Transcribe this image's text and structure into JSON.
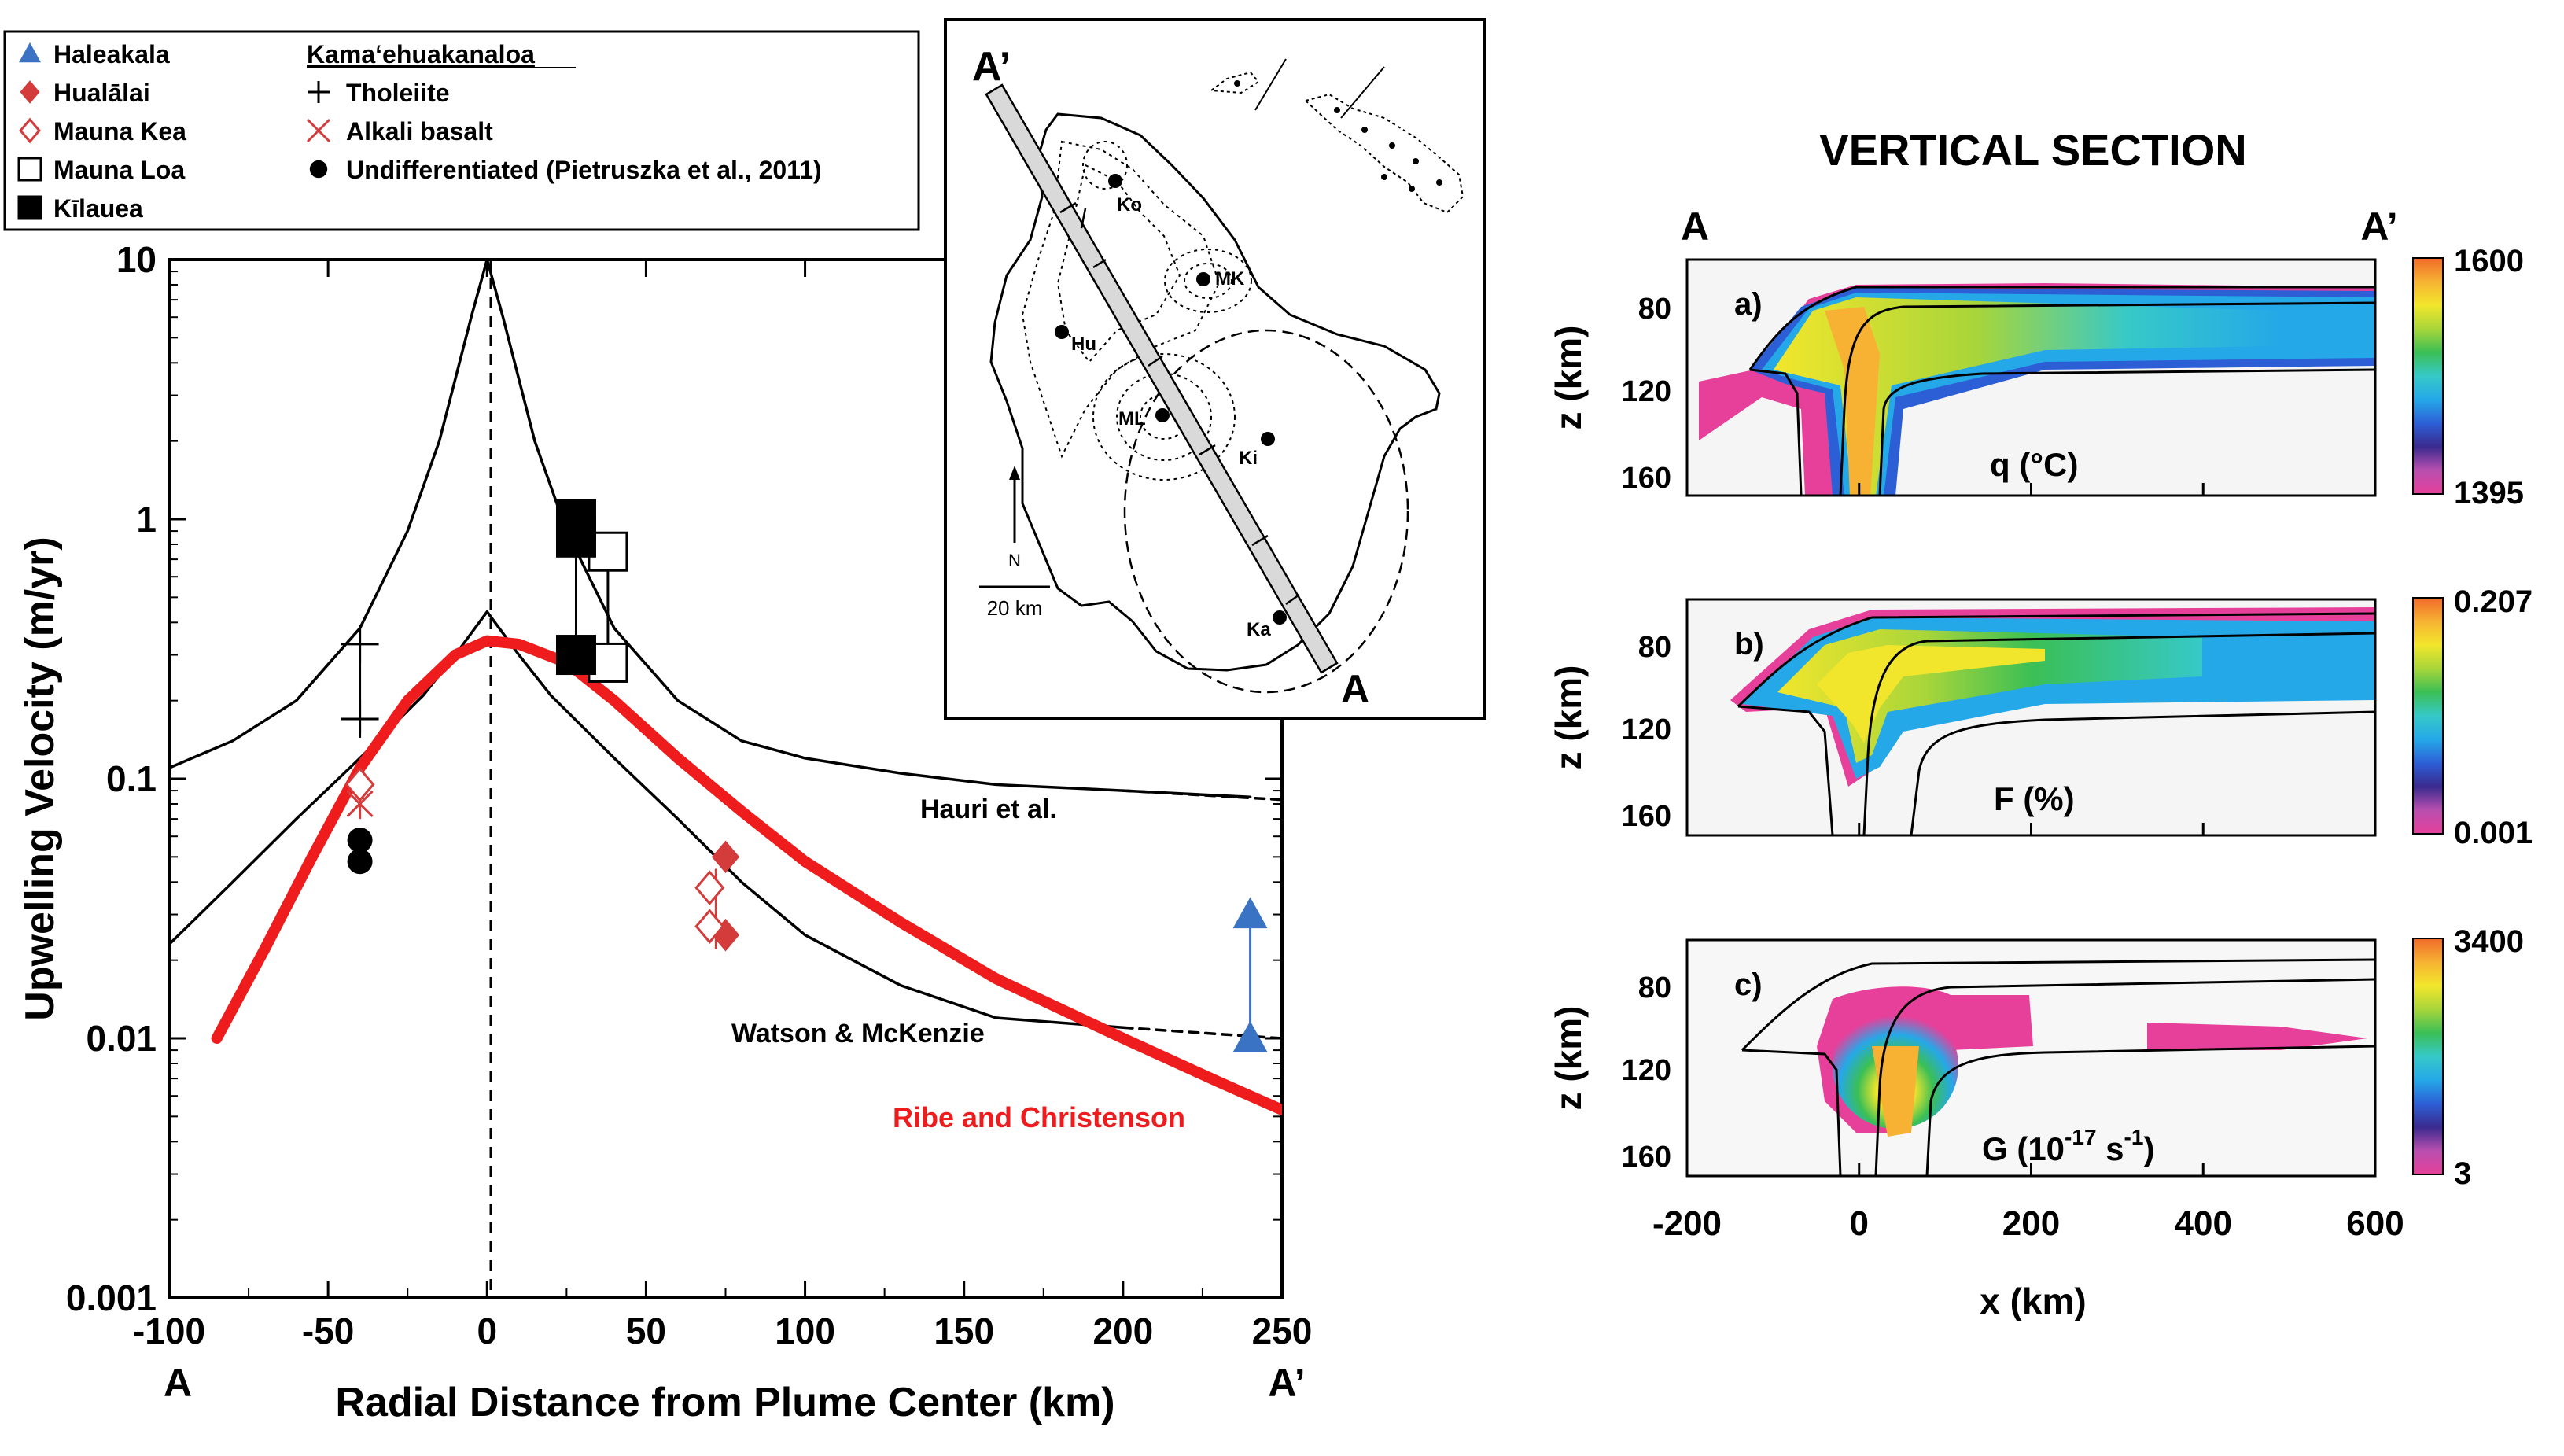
{
  "chart_data": [
    {
      "type": "line",
      "ylog": true,
      "ylabel": "Upwelling Velocity (m/yr)",
      "xlabel": "Radial Distance from Plume Center (km)",
      "xlim": [
        -100,
        250
      ],
      "ylim": [
        0.001,
        10
      ],
      "x_ticks": [
        "-100",
        "-50",
        "0",
        "50",
        "100",
        "150",
        "200",
        "250"
      ],
      "y_ticks": [
        "0.001",
        "0.01",
        "0.1",
        "1",
        "10"
      ],
      "x_end_labels": [
        "A",
        "A’"
      ],
      "series": [
        {
          "name": "Hauri et al.",
          "color": "#000000",
          "style": "solid",
          "x": [
            -100,
            -80,
            -60,
            -40,
            -25,
            -15,
            -5,
            0,
            5,
            15,
            25,
            40,
            60,
            80,
            100,
            130,
            160,
            200,
            240
          ],
          "y": [
            0.11,
            0.14,
            0.2,
            0.38,
            0.9,
            2.0,
            6.0,
            10,
            6.0,
            2.0,
            0.9,
            0.38,
            0.2,
            0.14,
            0.12,
            0.105,
            0.095,
            0.09,
            0.085
          ]
        },
        {
          "name": "Hauri extrapolation",
          "color": "#000000",
          "style": "dashed",
          "x": [
            200,
            250
          ],
          "y": [
            0.09,
            0.083
          ]
        },
        {
          "name": "Watson & McKenzie",
          "color": "#000000",
          "style": "solid",
          "x": [
            -100,
            -80,
            -60,
            -40,
            -20,
            -10,
            0,
            10,
            20,
            40,
            60,
            80,
            100,
            130,
            160,
            200
          ],
          "y": [
            0.023,
            0.04,
            0.07,
            0.12,
            0.21,
            0.3,
            0.44,
            0.3,
            0.21,
            0.12,
            0.07,
            0.04,
            0.025,
            0.016,
            0.012,
            0.011
          ]
        },
        {
          "name": "Watson extrapolation",
          "color": "#000000",
          "style": "dashed",
          "x": [
            200,
            250
          ],
          "y": [
            0.011,
            0.01
          ]
        },
        {
          "name": "Ribe and Christenson",
          "color": "#ee1c1c",
          "style": "solid",
          "x": [
            -85,
            -70,
            -55,
            -40,
            -25,
            -10,
            0,
            10,
            25,
            40,
            60,
            80,
            100,
            130,
            160,
            200,
            230,
            250
          ],
          "y": [
            0.01,
            0.022,
            0.05,
            0.11,
            0.2,
            0.3,
            0.34,
            0.33,
            0.28,
            0.2,
            0.12,
            0.075,
            0.048,
            0.028,
            0.017,
            0.01,
            0.0068,
            0.0053
          ]
        }
      ],
      "curve_labels": [
        "Hauri et al.",
        "Watson & McKenzie",
        "Ribe and Christenson"
      ],
      "points": [
        {
          "group": "Haleakala",
          "marker": "triangle",
          "color": "#3a72c4",
          "x": 240,
          "y": 0.03
        },
        {
          "group": "Haleakala",
          "marker": "triangle",
          "color": "#3a72c4",
          "x": 240,
          "y": 0.01
        },
        {
          "group": "Hualālai",
          "marker": "diamond-filled",
          "color": "#d43b3b",
          "x": 75,
          "y": 0.05
        },
        {
          "group": "Hualālai",
          "marker": "diamond-filled",
          "color": "#d43b3b",
          "x": 75,
          "y": 0.025
        },
        {
          "group": "Mauna Kea",
          "marker": "diamond-open",
          "color": "#d43b3b",
          "x": 70,
          "y": 0.038
        },
        {
          "group": "Mauna Kea",
          "marker": "diamond-open",
          "color": "#d43b3b",
          "x": 70,
          "y": 0.027
        },
        {
          "group": "Mauna Kea",
          "marker": "diamond-open",
          "color": "#d43b3b",
          "x": -40,
          "y": 0.095
        },
        {
          "group": "Mauna Loa",
          "marker": "square-open",
          "color": "#000000",
          "x": 38,
          "y": 0.75
        },
        {
          "group": "Mauna Loa",
          "marker": "square-open",
          "color": "#000000",
          "x": 38,
          "y": 0.28
        },
        {
          "group": "Kīlauea",
          "marker": "square-filled",
          "color": "#000000",
          "x": 28,
          "y": 1.0
        },
        {
          "group": "Kīlauea",
          "marker": "square-filled",
          "color": "#000000",
          "x": 28,
          "y": 0.85
        },
        {
          "group": "Kīlauea",
          "marker": "square-filled",
          "color": "#000000",
          "x": 28,
          "y": 0.3
        },
        {
          "group": "Tholeiite",
          "marker": "plus",
          "color": "#000000",
          "x": -40,
          "y": 0.33
        },
        {
          "group": "Tholeiite",
          "marker": "plus",
          "color": "#000000",
          "x": -40,
          "y": 0.17
        },
        {
          "group": "Alkali basalt",
          "marker": "cross",
          "color": "#d43b3b",
          "x": -40,
          "y": 0.08
        },
        {
          "group": "Undifferentiated (Pietruszka et al., 2011)",
          "marker": "circle",
          "color": "#000000",
          "x": -40,
          "y": 0.058
        },
        {
          "group": "Undifferentiated (Pietruszka et al., 2011)",
          "marker": "circle",
          "color": "#000000",
          "x": -40,
          "y": 0.048
        }
      ],
      "legend": {
        "placement": "top-left",
        "left_column": [
          {
            "label": "Haleakala",
            "marker": "triangle",
            "color": "#3a72c4"
          },
          {
            "label": "Hualālai",
            "marker": "diamond-filled",
            "color": "#d43b3b"
          },
          {
            "label": "Mauna Kea",
            "marker": "diamond-open",
            "color": "#d43b3b"
          },
          {
            "label": "Mauna Loa",
            "marker": "square-open",
            "color": "#000000"
          },
          {
            "label": "Kīlauea",
            "marker": "square-filled",
            "color": "#000000"
          }
        ],
        "right_header": "Kama‘ehuakanaloa",
        "right_column": [
          {
            "label": "Tholeiite",
            "marker": "plus",
            "color": "#000000"
          },
          {
            "label": "Alkali basalt",
            "marker": "cross",
            "color": "#d43b3b"
          },
          {
            "label": "Undifferentiated (Pietruszka et al., 2011)",
            "marker": "circle",
            "color": "#000000"
          }
        ]
      }
    },
    {
      "type": "heatmap",
      "title": "VERTICAL SECTION",
      "x_end_labels": [
        "A",
        "A’"
      ],
      "xlabel": "x (km)",
      "xlim": [
        -200,
        600
      ],
      "x_ticks": [
        "-200",
        "0",
        "200",
        "400",
        "600"
      ],
      "ylim": [
        170,
        55
      ],
      "panels": [
        {
          "tag": "a)",
          "ylabel": "z (km)",
          "y_ticks": [
            "80",
            "120",
            "160"
          ],
          "quantity": "q (°C)",
          "cbar_max": "1600",
          "cbar_min": "1395"
        },
        {
          "tag": "b)",
          "ylabel": "z (km)",
          "y_ticks": [
            "80",
            "120",
            "160"
          ],
          "quantity": "F (%)",
          "cbar_max": "0.207",
          "cbar_min": "0.001"
        },
        {
          "tag": "c)",
          "ylabel": "z (km)",
          "y_ticks": [
            "80",
            "120",
            "160"
          ],
          "quantity": "G (10",
          "quantity_exp": "-17",
          "quantity_unit": " s",
          "quantity_exp2": "-1",
          "quantity_close": ")",
          "cbar_max": "3400",
          "cbar_min": "3"
        }
      ],
      "colorscale": [
        "#e6409a",
        "#b84fb0",
        "#3a2a8e",
        "#2c5fd6",
        "#25a8e8",
        "#36c9c8",
        "#3bbf55",
        "#a8d53a",
        "#f2e62c",
        "#f7b233",
        "#f06a2a"
      ]
    },
    {
      "type": "map",
      "labels": {
        "top_end": "A’",
        "bottom_end": "A",
        "north": "N",
        "scale": "20 km"
      },
      "volcanoes": [
        "Ko",
        "MK",
        "Hu",
        "ML",
        "Ki",
        "Ka"
      ]
    }
  ]
}
